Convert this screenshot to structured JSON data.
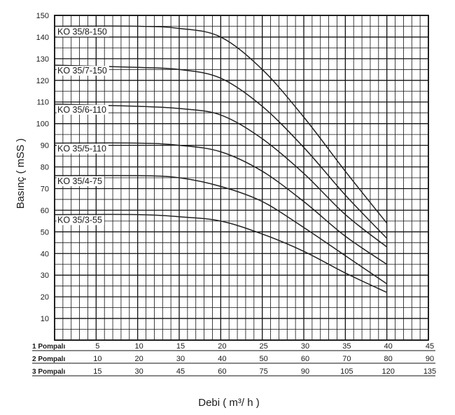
{
  "chart_data": {
    "type": "line",
    "ylabel": "Basınç ( mSS )",
    "xlabel": "Debi ( m³/ h )",
    "ylim": [
      0,
      150
    ],
    "y_ticks": [
      "10",
      "20",
      "30",
      "40",
      "50",
      "60",
      "70",
      "80",
      "90",
      "100",
      "110",
      "120",
      "130",
      "140",
      "150"
    ],
    "grid": true,
    "x_rows": [
      {
        "label": "1 Pompalı",
        "ticks": [
          "5",
          "10",
          "15",
          "20",
          "25",
          "30",
          "35",
          "40",
          "45"
        ]
      },
      {
        "label": "2 Pompalı",
        "ticks": [
          "10",
          "20",
          "30",
          "40",
          "50",
          "60",
          "70",
          "80",
          "90"
        ]
      },
      {
        "label": "3 Pompalı",
        "ticks": [
          "15",
          "30",
          "45",
          "60",
          "75",
          "90",
          "105",
          "120",
          "135"
        ]
      }
    ],
    "x_range_1_pump": [
      0,
      45
    ],
    "series": [
      {
        "name": "KO 35/8-150",
        "x": [
          0,
          10,
          15,
          20,
          25,
          30,
          35,
          40
        ],
        "y": [
          145,
          145,
          144,
          140,
          125,
          103,
          78,
          54
        ]
      },
      {
        "name": "KO 35/7-150",
        "x": [
          0,
          10,
          15,
          20,
          25,
          30,
          35,
          40
        ],
        "y": [
          127,
          126,
          125,
          121,
          108,
          89,
          67,
          47
        ]
      },
      {
        "name": "KO 35/6-110",
        "x": [
          0,
          10,
          15,
          20,
          25,
          30,
          35,
          40
        ],
        "y": [
          109,
          108,
          107,
          104,
          93,
          77,
          58,
          43
        ]
      },
      {
        "name": "KO 35/5-110",
        "x": [
          0,
          10,
          15,
          20,
          25,
          30,
          35,
          40
        ],
        "y": [
          91,
          91,
          90,
          87,
          78,
          64,
          48,
          35
        ]
      },
      {
        "name": "KO 35/4-75",
        "x": [
          0,
          10,
          15,
          20,
          25,
          30,
          35,
          40
        ],
        "y": [
          76,
          76,
          75,
          71,
          64,
          52,
          39,
          26
        ]
      },
      {
        "name": "KO 35/3-55",
        "x": [
          0,
          10,
          15,
          20,
          25,
          30,
          35,
          40
        ],
        "y": [
          58,
          58,
          57,
          55,
          49,
          41,
          31,
          22
        ]
      }
    ]
  }
}
